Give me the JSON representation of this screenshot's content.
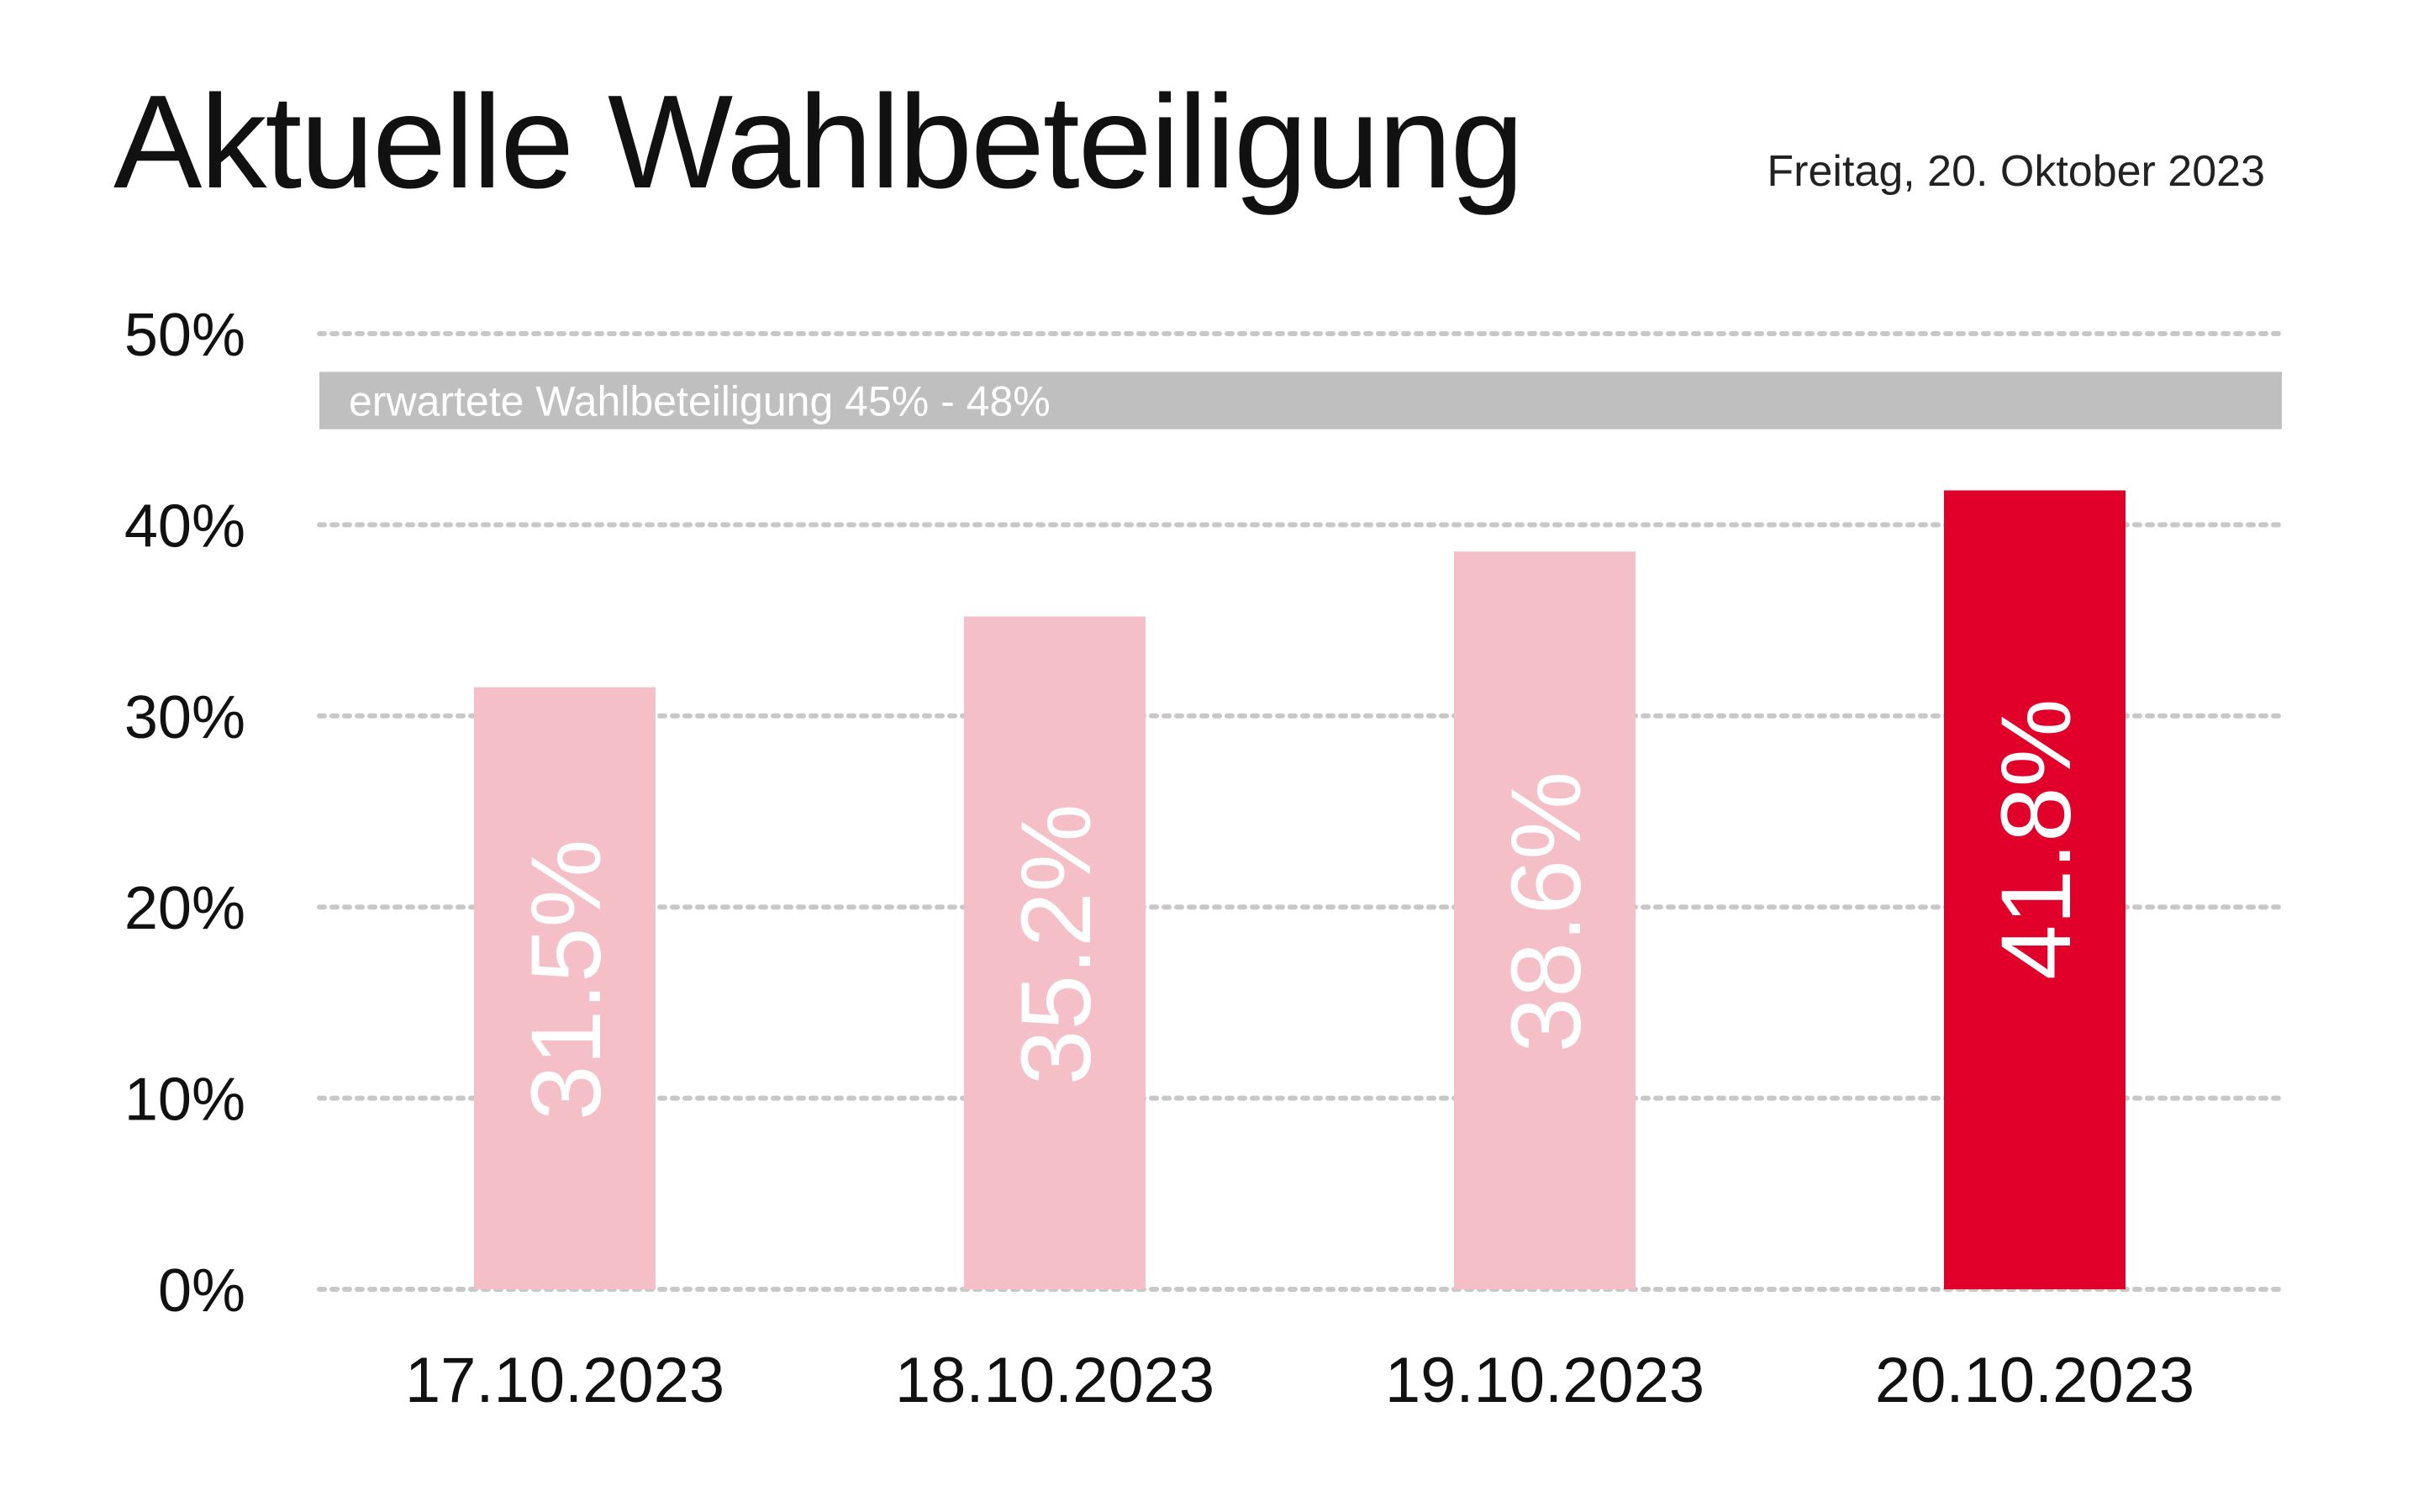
{
  "header": {
    "title": "Aktuelle Wahlbeteiligung",
    "date": "Freitag, 20. Oktober 2023"
  },
  "chart_data": {
    "type": "bar",
    "title": "Aktuelle Wahlbeteiligung",
    "subtitle": "Freitag, 20. Oktober 2023",
    "categories": [
      "17.10.2023",
      "18.10.2023",
      "19.10.2023",
      "20.10.2023"
    ],
    "values": [
      31.5,
      35.2,
      38.6,
      41.8
    ],
    "value_labels": [
      "31.5%",
      "35.2%",
      "38.6%",
      "41.8%"
    ],
    "highlight_index": 3,
    "ylim": [
      0,
      50
    ],
    "yticks": [
      0,
      10,
      20,
      30,
      40,
      50
    ],
    "ytick_labels": [
      "0%",
      "10%",
      "20%",
      "30%",
      "40%",
      "50%"
    ],
    "grid": true,
    "band": {
      "label": "erwartete Wahlbeteiligung 45% - 48%",
      "from": 45,
      "to": 48
    },
    "xlabel": "",
    "ylabel": "",
    "colors": {
      "bar": "#f5bfc8",
      "highlight": "#e0002a",
      "band": "#bfbfbf",
      "grid": "#c8c8c8"
    }
  }
}
